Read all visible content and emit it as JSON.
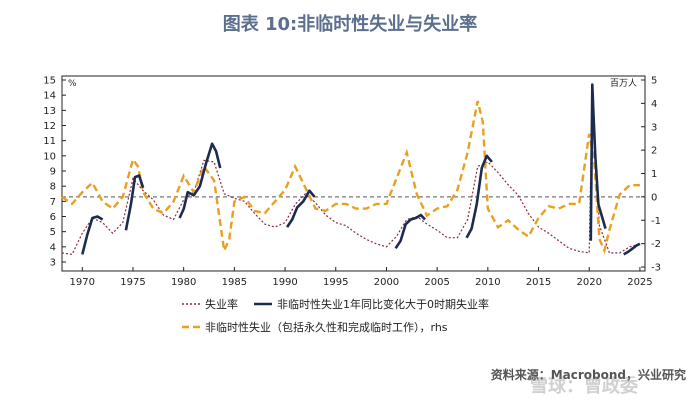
{
  "figure_title": "图表 10:非临时性失业与失业率",
  "source": "资料来源：Macrobond，兴业研究",
  "watermark": "雪球：曾政委",
  "chart_data": {
    "type": "line",
    "left_axis": {
      "unit": "%",
      "range": [
        3,
        15
      ],
      "ticks": [
        3,
        4,
        5,
        6,
        7,
        8,
        9,
        10,
        11,
        12,
        13,
        14,
        15
      ]
    },
    "right_axis": {
      "unit": "百万人",
      "range": [
        -3,
        5
      ],
      "ticks": [
        -3,
        -2,
        -1,
        0,
        1,
        2,
        3,
        4,
        5
      ]
    },
    "x_axis": {
      "range": [
        1968,
        2025.5
      ],
      "ticks": [
        1970,
        1975,
        1980,
        1985,
        1990,
        1995,
        2000,
        2005,
        2010,
        2015,
        2020,
        2025
      ]
    },
    "zero_reference_line": {
      "axis": "right",
      "value": 0
    },
    "colors": {
      "unemployment": "#8b2a48",
      "yoy": "#1c2b4e",
      "permanent": "#e8a020",
      "zero_line": "#777777"
    },
    "series": [
      {
        "name": "失业率",
        "axis": "left",
        "style": "dotted",
        "x": [
          1968,
          1969,
          1970,
          1971,
          1972,
          1973,
          1974,
          1975,
          1976,
          1977,
          1978,
          1979,
          1980,
          1981,
          1982,
          1983,
          1984,
          1985,
          1986,
          1987,
          1988,
          1989,
          1990,
          1991,
          1992,
          1993,
          1994,
          1995,
          1996,
          1997,
          1998,
          1999,
          2000,
          2001,
          2002,
          2003,
          2004,
          2005,
          2006,
          2007,
          2008,
          2009,
          2010,
          2011,
          2012,
          2013,
          2014,
          2015,
          2016,
          2017,
          2018,
          2019,
          2020,
          2020.3,
          2020.5,
          2021,
          2022,
          2023,
          2024,
          2025
        ],
        "y": [
          3.6,
          3.5,
          4.9,
          5.9,
          5.6,
          4.9,
          5.6,
          8.5,
          7.7,
          7.1,
          6.1,
          5.8,
          7.1,
          7.6,
          9.7,
          9.6,
          7.5,
          7.2,
          7.0,
          6.2,
          5.5,
          5.3,
          5.6,
          6.8,
          7.5,
          6.9,
          6.1,
          5.6,
          5.4,
          4.9,
          4.5,
          4.2,
          4.0,
          4.7,
          5.8,
          6.0,
          5.5,
          5.1,
          4.6,
          4.6,
          5.8,
          9.3,
          9.6,
          8.9,
          8.1,
          7.4,
          6.2,
          5.3,
          4.9,
          4.4,
          3.9,
          3.7,
          3.6,
          14.7,
          11.1,
          5.4,
          3.6,
          3.6,
          4.0,
          4.2
        ]
      },
      {
        "name": "非临时性失业1年同比变化大于0时期失业率",
        "axis": "left",
        "style": "solid",
        "segments": [
          {
            "x": [
              1970.0,
              1970.5,
              1971.0,
              1971.5,
              1972.0
            ],
            "y": [
              3.5,
              4.8,
              5.9,
              6.0,
              5.8
            ]
          },
          {
            "x": [
              1974.3,
              1974.8,
              1975.2,
              1975.6,
              1976.0
            ],
            "y": [
              5.1,
              6.8,
              8.6,
              8.7,
              7.9
            ]
          },
          {
            "x": [
              1979.6,
              1980.0,
              1980.4,
              1981.0,
              1981.6,
              1982.2,
              1982.8,
              1983.2,
              1983.6
            ],
            "y": [
              5.9,
              6.5,
              7.6,
              7.4,
              8.0,
              9.5,
              10.8,
              10.3,
              9.2
            ]
          },
          {
            "x": [
              1990.2,
              1990.7,
              1991.2,
              1991.8,
              1992.4,
              1992.9
            ],
            "y": [
              5.3,
              5.8,
              6.6,
              7.0,
              7.7,
              7.3
            ]
          },
          {
            "x": [
              2000.9,
              2001.4,
              2001.9,
              2002.4,
              2002.9,
              2003.4,
              2003.8
            ],
            "y": [
              3.9,
              4.4,
              5.5,
              5.8,
              5.9,
              6.1,
              5.8
            ]
          },
          {
            "x": [
              2007.9,
              2008.4,
              2008.9,
              2009.4,
              2009.9,
              2010.4
            ],
            "y": [
              4.6,
              5.2,
              6.8,
              9.2,
              10.0,
              9.6
            ]
          },
          {
            "x": [
              2020.15,
              2020.3,
              2020.4,
              2020.6,
              2020.9,
              2021.3,
              2021.6
            ],
            "y": [
              4.4,
              14.7,
              13.0,
              10.0,
              6.8,
              5.9,
              5.2
            ]
          },
          {
            "x": [
              2023.4,
              2023.9,
              2024.3,
              2024.7,
              2025.0
            ],
            "y": [
              3.5,
              3.7,
              3.9,
              4.1,
              4.2
            ]
          }
        ]
      },
      {
        "name": "非临时性失业（包括永久性和完成临时工作），rhs",
        "axis": "right",
        "style": "dashed",
        "x": [
          1968,
          1969,
          1970,
          1971,
          1972,
          1973,
          1974,
          1975,
          1975.5,
          1976,
          1977,
          1978,
          1979,
          1980,
          1981,
          1982,
          1983,
          1984,
          1984.5,
          1985,
          1986,
          1987,
          1988,
          1989,
          1990,
          1991,
          1992,
          1993,
          1994,
          1995,
          1996,
          1997,
          1998,
          1999,
          2000,
          2001,
          2002,
          2003,
          2004,
          2005,
          2006,
          2007,
          2008,
          2009,
          2009.5,
          2010,
          2011,
          2012,
          2013,
          2014,
          2015,
          2016,
          2017,
          2018,
          2019,
          2020,
          2020.5,
          2021,
          2021.5,
          2022,
          2023,
          2024,
          2025
        ],
        "y": [
          0.0,
          -0.3,
          0.2,
          0.6,
          -0.2,
          -0.5,
          0.0,
          1.6,
          1.3,
          0.2,
          -0.5,
          -0.7,
          -0.2,
          0.9,
          0.2,
          1.3,
          0.7,
          -2.3,
          -1.8,
          -0.2,
          0.0,
          -0.6,
          -0.7,
          -0.2,
          0.3,
          1.3,
          0.4,
          -0.5,
          -0.6,
          -0.3,
          -0.3,
          -0.5,
          -0.5,
          -0.3,
          -0.3,
          0.8,
          1.9,
          0.1,
          -0.8,
          -0.5,
          -0.4,
          0.3,
          1.9,
          4.1,
          3.2,
          -0.5,
          -1.3,
          -1.0,
          -1.4,
          -1.7,
          -0.9,
          -0.4,
          -0.5,
          -0.3,
          -0.3,
          2.7,
          1.5,
          -1.8,
          -2.3,
          -1.4,
          0.1,
          0.5,
          0.5
        ]
      }
    ],
    "legend": [
      {
        "label": "失业率",
        "style": "dotted"
      },
      {
        "label": "非临时性失业1年同比变化大于0时期失业率",
        "style": "solid"
      },
      {
        "label": "非临时性失业（包括永久性和完成临时工作），rhs",
        "style": "dashed"
      }
    ]
  }
}
